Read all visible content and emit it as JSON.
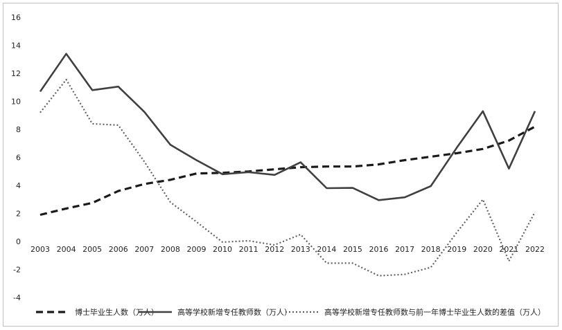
{
  "chart_data": {
    "type": "line",
    "title": "",
    "xlabel": "",
    "ylabel": "",
    "categories": [
      "2003",
      "2004",
      "2005",
      "2006",
      "2007",
      "2008",
      "2009",
      "2010",
      "2011",
      "2012",
      "2013",
      "2014",
      "2015",
      "2016",
      "2017",
      "2018",
      "2019",
      "2020",
      "2021",
      "2022"
    ],
    "ylim": [
      -4,
      16
    ],
    "yticks": [
      -4,
      -2,
      0,
      2,
      4,
      6,
      8,
      10,
      12,
      14,
      16
    ],
    "yticks_labels": [
      "-4",
      "-2",
      "0",
      "2",
      "4",
      "6",
      "8",
      "10",
      "12",
      "14",
      "16"
    ],
    "grid": false,
    "legend_position": "bottom",
    "series": [
      {
        "name": "博士毕业生人数（万人）",
        "style": "dashed",
        "color": "#1a1a1a",
        "values": [
          1.9,
          2.35,
          2.75,
          3.6,
          4.1,
          4.4,
          4.85,
          4.9,
          5.0,
          5.15,
          5.3,
          5.35,
          5.35,
          5.5,
          5.8,
          6.05,
          6.3,
          6.6,
          7.2,
          8.2
        ]
      },
      {
        "name": "高等学校新增专任教师数（万人）",
        "style": "solid",
        "color": "#404040",
        "values": [
          10.7,
          13.4,
          10.8,
          11.05,
          9.25,
          6.9,
          5.8,
          4.8,
          4.95,
          4.75,
          5.65,
          3.8,
          3.82,
          2.95,
          3.15,
          3.95,
          6.7,
          9.3,
          5.2,
          9.3
        ]
      },
      {
        "name": "高等学校新增专任教师数与前一年博士毕业生人数的差值（万人）",
        "style": "dotted",
        "color": "#606060",
        "values": [
          9.2,
          11.55,
          8.4,
          8.3,
          5.7,
          2.8,
          1.4,
          -0.05,
          0.05,
          -0.25,
          0.5,
          -1.55,
          -1.55,
          -2.45,
          -2.35,
          -1.85,
          0.65,
          3.0,
          -1.4,
          2.1
        ]
      }
    ]
  }
}
